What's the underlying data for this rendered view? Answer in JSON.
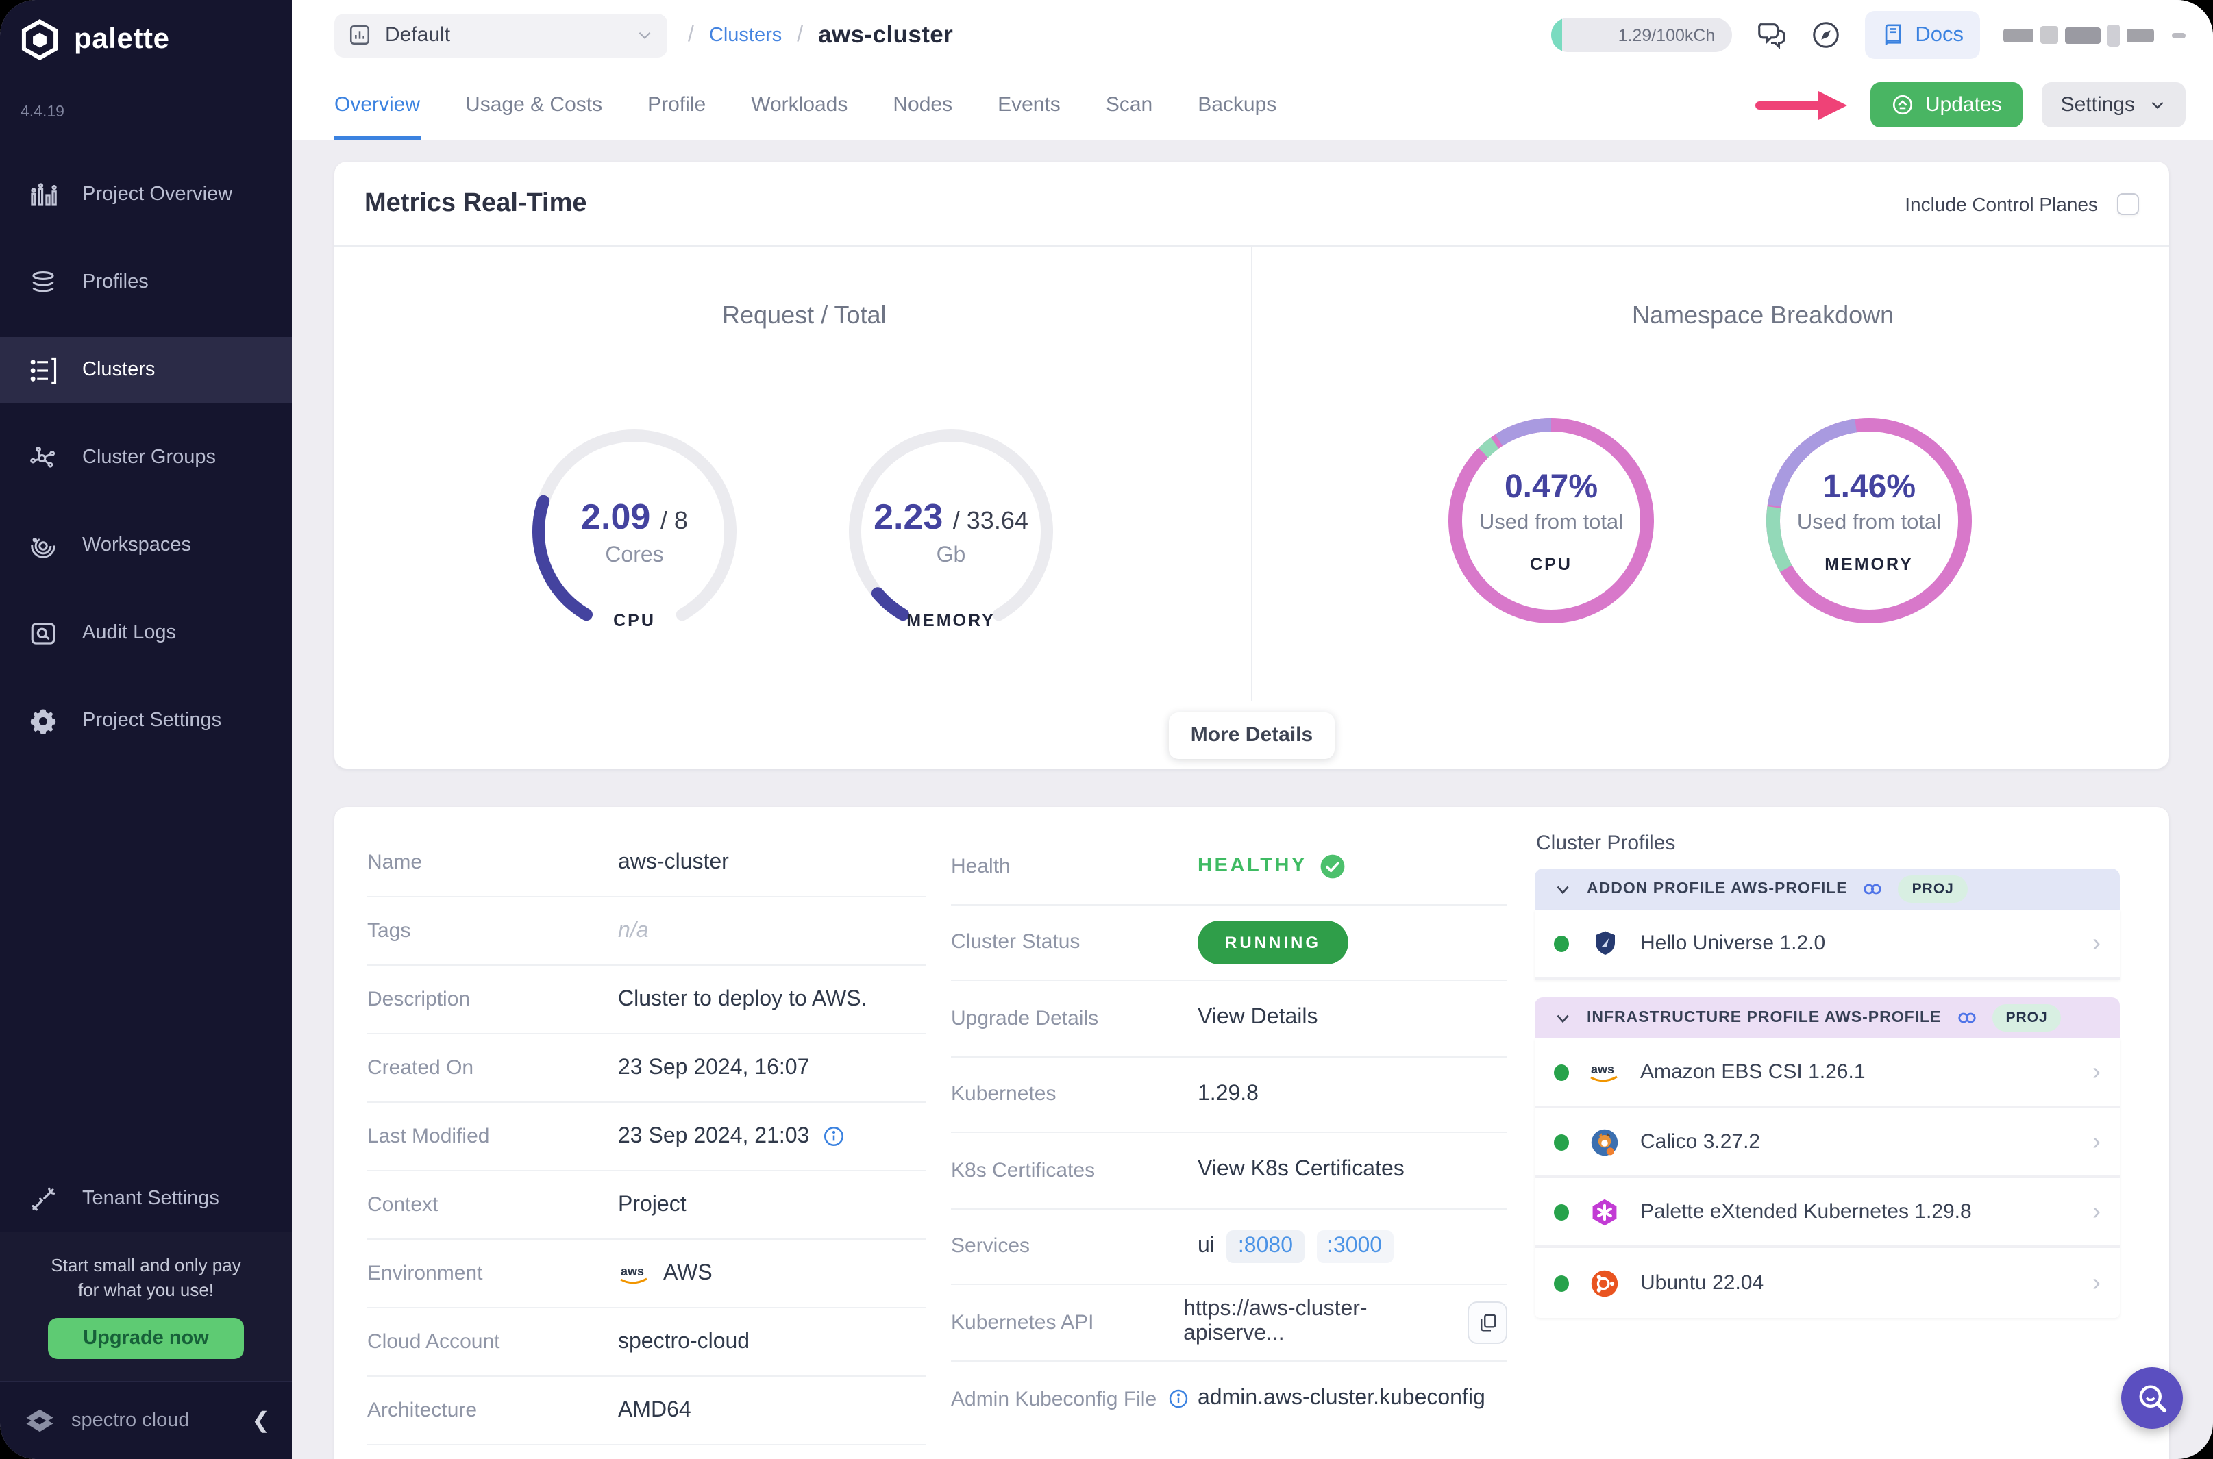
{
  "app": {
    "name": "palette",
    "version": "4.4.19"
  },
  "colors": {
    "sidebar_bg": "#15152e",
    "accent_blue": "#3b82e0",
    "green": "#49b563",
    "gauge_indigo": "#44439f",
    "ring_pink": "#d878ca",
    "ring_purple": "#a99ae0",
    "ring_green": "#93d9b8",
    "annotation_pink": "#ef4277",
    "running_green": "#2f9e49"
  },
  "sidebar": {
    "items": [
      {
        "label": "Project Overview"
      },
      {
        "label": "Profiles"
      },
      {
        "label": "Clusters"
      },
      {
        "label": "Cluster Groups"
      },
      {
        "label": "Workspaces"
      },
      {
        "label": "Audit Logs"
      },
      {
        "label": "Project Settings"
      }
    ],
    "active_item": "Clusters",
    "tenant_settings_label": "Tenant Settings",
    "upgrade": {
      "line1": "Start small and only pay",
      "line2": "for what you use!",
      "button": "Upgrade now"
    },
    "footer": {
      "brand": "spectro cloud"
    }
  },
  "topbar": {
    "project_selector": {
      "value": "Default"
    },
    "breadcrumb": {
      "sep": "/",
      "items": [
        {
          "label": "Clusters"
        },
        {
          "label": "aws-cluster"
        }
      ]
    },
    "usage_pill": "1.29/100kCh",
    "docs_label": "Docs"
  },
  "tabs": {
    "active": "Overview",
    "items": [
      {
        "label": "Overview"
      },
      {
        "label": "Usage & Costs"
      },
      {
        "label": "Profile"
      },
      {
        "label": "Workloads"
      },
      {
        "label": "Nodes"
      },
      {
        "label": "Events"
      },
      {
        "label": "Scan"
      },
      {
        "label": "Backups"
      }
    ]
  },
  "actions": {
    "updates": "Updates",
    "settings": "Settings"
  },
  "metrics": {
    "card_title": "Metrics Real-Time",
    "include_control_planes_label": "Include Control Planes",
    "include_control_planes_checked": false,
    "request_total_title": "Request / Total",
    "namespace_title": "Namespace Breakdown",
    "gauges": [
      {
        "value": 2.09,
        "total": 8,
        "value_label": "2.09",
        "total_label": "/ 8",
        "unit": "Cores",
        "metric": "CPU"
      },
      {
        "value": 2.23,
        "total": 33.64,
        "value_label": "2.23",
        "total_label": "/ 33.64",
        "unit": "Gb",
        "metric": "MEMORY"
      }
    ],
    "rings": [
      {
        "pct_label": "0.47%",
        "caption": "Used from total",
        "metric": "CPU",
        "segments": [
          {
            "color": "#93d9b8",
            "from": 225,
            "len": 9
          },
          {
            "color": "#a99ae0",
            "from": 237,
            "len": 33
          }
        ]
      },
      {
        "pct_label": "1.46%",
        "caption": "Used from total",
        "metric": "MEMORY",
        "segments": [
          {
            "color": "#93d9b8",
            "from": 150,
            "len": 38
          },
          {
            "color": "#a99ae0",
            "from": 189,
            "len": 73
          }
        ]
      }
    ],
    "more_details_label": "More Details"
  },
  "chart_data": [
    {
      "type": "gauge",
      "title": "Request / Total - CPU",
      "value": 2.09,
      "max": 8,
      "unit": "Cores"
    },
    {
      "type": "gauge",
      "title": "Request / Total - Memory",
      "value": 2.23,
      "max": 33.64,
      "unit": "Gb"
    },
    {
      "type": "donut",
      "title": "Namespace Breakdown - CPU",
      "center_label": "0.47% Used from total",
      "slices_pct": [
        {
          "name": "other",
          "value": 88.3
        },
        {
          "name": "segment-purple",
          "value": 9.2
        },
        {
          "name": "segment-green",
          "value": 2.5
        }
      ]
    },
    {
      "type": "donut",
      "title": "Namespace Breakdown - MEMORY",
      "center_label": "1.46% Used from total",
      "slices_pct": [
        {
          "name": "other",
          "value": 69.2
        },
        {
          "name": "segment-purple",
          "value": 20.3
        },
        {
          "name": "segment-green",
          "value": 10.5
        }
      ]
    }
  ],
  "details": {
    "left": [
      {
        "label": "Name",
        "value": "aws-cluster"
      },
      {
        "label": "Tags",
        "value": "n/a"
      },
      {
        "label": "Description",
        "value": "Cluster to deploy to AWS."
      },
      {
        "label": "Created On",
        "value": "23 Sep 2024, 16:07"
      },
      {
        "label": "Last Modified",
        "value": "23 Sep 2024, 21:03"
      },
      {
        "label": "Context",
        "value": "Project"
      },
      {
        "label": "Environment",
        "value": "AWS"
      },
      {
        "label": "Cloud Account",
        "value": "spectro-cloud"
      },
      {
        "label": "Architecture",
        "value": "AMD64"
      }
    ],
    "right": {
      "health_label": "Health",
      "health_value": "HEALTHY",
      "status_label": "Cluster Status",
      "status_value": "RUNNING",
      "upgrade_label": "Upgrade Details",
      "upgrade_value": "View Details",
      "k8s_label": "Kubernetes",
      "k8s_value": "1.29.8",
      "certs_label": "K8s Certificates",
      "certs_value": "View K8s Certificates",
      "services_label": "Services",
      "services_prefix": "ui",
      "services_ports": [
        ":8080",
        ":3000"
      ],
      "api_label": "Kubernetes API",
      "api_value": "https://aws-cluster-apiserve...",
      "kubeconfig_label": "Admin Kubeconfig File",
      "kubeconfig_value": "admin.aws-cluster.kubeconfig"
    }
  },
  "cluster_profiles": {
    "title": "Cluster Profiles",
    "sections": [
      {
        "header": "ADDON PROFILE AWS-PROFILE",
        "badge": "PROJ",
        "items": [
          {
            "name": "Hello Universe 1.2.0",
            "icon": "hello-universe"
          }
        ]
      },
      {
        "header": "INFRASTRUCTURE PROFILE AWS-PROFILE",
        "badge": "PROJ",
        "items": [
          {
            "name": "Amazon EBS CSI 1.26.1",
            "icon": "aws"
          },
          {
            "name": "Calico 3.27.2",
            "icon": "calico"
          },
          {
            "name": "Palette eXtended Kubernetes 1.29.8",
            "icon": "pxk"
          },
          {
            "name": "Ubuntu 22.04",
            "icon": "ubuntu"
          }
        ]
      }
    ]
  }
}
